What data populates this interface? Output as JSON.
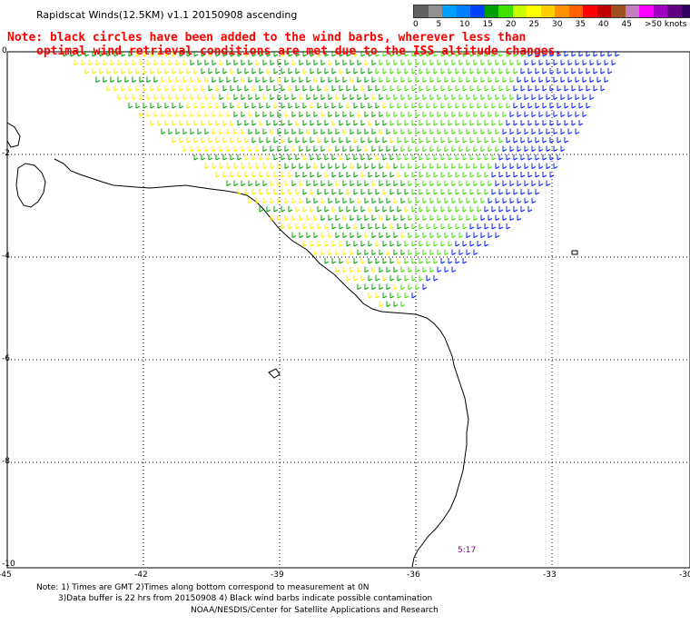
{
  "title": "Rapidscat Winds(12.5KM) v1.1 20150908 ascending",
  "note_line1": "Note: black circles have been added to the wind barbs, wherever less than",
  "note_line2": "optimal wind retrieval conditions are met due to the ISS altitude changes.",
  "legend": {
    "ticks": [
      "0",
      "5",
      "10",
      "15",
      "20",
      "25",
      "30",
      "35",
      "40",
      "45",
      ">50 knots"
    ],
    "colors": [
      "#606060",
      "#909090",
      "#00a0ff",
      "#0080ff",
      "#0040ff",
      "#00a000",
      "#40e000",
      "#c8ff00",
      "#ffff00",
      "#ffd000",
      "#ff9000",
      "#ff6000",
      "#ff0000",
      "#c00000",
      "#a05020",
      "#c080c0",
      "#ff00ff",
      "#a000c0",
      "#600080",
      "#300060"
    ]
  },
  "map": {
    "x_ticks": [
      "-45",
      "-42",
      "-39",
      "-36",
      "-33",
      "-30"
    ],
    "y_ticks": [
      "0",
      "-2",
      "-4",
      "-6",
      "-8",
      "-10"
    ],
    "time_label": "5:17",
    "barb_colors": {
      "low": "#ffee00",
      "mid": "#00a000",
      "green": "#40e000",
      "high": "#0020ff"
    }
  },
  "footer": {
    "line1": "Note: 1) Times are GMT 2)Times along bottom correspond to measurement at 0N",
    "line2": "3)Data buffer is 22 hrs from 20150908 4) Black wind barbs indicate possible contamination",
    "line3": "NOAA/NESDIS/Center for Satellite Applications and Research"
  }
}
